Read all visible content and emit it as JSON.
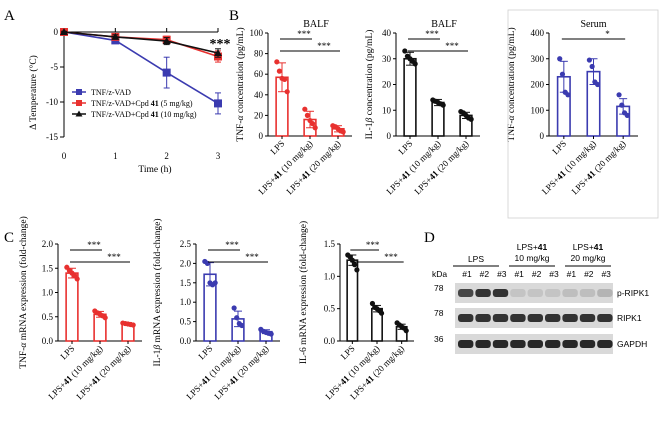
{
  "colors": {
    "red": "#e8312f",
    "navy": "#3b3bb0",
    "black": "#111111",
    "blueDark": "#2e2e9e",
    "redBorder": "#e8312f"
  },
  "panels": {
    "A": "A",
    "B": "B",
    "C": "C",
    "D": "D"
  },
  "chart_data": [
    {
      "id": "A",
      "type": "line",
      "xlabel": "Time (h)",
      "ylabel": "Δ Temperature (°C)",
      "xlim": [
        0,
        3
      ],
      "ylim": [
        -15,
        0
      ],
      "xticks": [
        "0",
        "1",
        "2",
        "3"
      ],
      "yticks": [
        "0",
        "-5",
        "-10",
        "-15"
      ],
      "annotation": "***",
      "series": [
        {
          "name": "TNF/z-VAD",
          "color": "#3b3bb0",
          "marker": "square",
          "x": [
            0,
            1,
            2,
            3
          ],
          "values": [
            0,
            -1.2,
            -5.8,
            -10.2
          ],
          "err": [
            0.1,
            0.4,
            2.2,
            1.5
          ]
        },
        {
          "name": "TNF/z-VAD+Cpd 41 (5 mg/kg)",
          "name_parts": [
            "TNF/z-VAD+Cpd ",
            "41",
            " (5 mg/kg)"
          ],
          "color": "#e8312f",
          "marker": "square",
          "x": [
            0,
            1,
            2,
            3
          ],
          "values": [
            0,
            -0.7,
            -1.1,
            -3.5
          ],
          "err": [
            0.1,
            0.3,
            0.5,
            0.8
          ]
        },
        {
          "name": "TNF/z-VAD+Cpd 41 (10 mg/kg)",
          "name_parts": [
            "TNF/z-VAD+Cpd ",
            "41",
            " (10 mg/kg)"
          ],
          "color": "#111111",
          "marker": "triangle",
          "x": [
            0,
            1,
            2,
            3
          ],
          "values": [
            0,
            -0.7,
            -1.3,
            -3.0
          ],
          "err": [
            0.1,
            0.3,
            0.5,
            0.6
          ]
        }
      ]
    },
    {
      "id": "B1",
      "type": "bar",
      "title": "BALF",
      "ylabel": "TNF-α concentration (pg/mL)",
      "ylabel_parts": [
        "TNF-",
        "α",
        " concentration (pg/mL)"
      ],
      "ylim": [
        0,
        100
      ],
      "yticks": [
        "0",
        "20",
        "40",
        "60",
        "80",
        "100"
      ],
      "categories": [
        "LPS",
        "LPS+41 (10 mg/kg)",
        "LPS+41 (20 mg/kg)"
      ],
      "values": [
        57,
        16,
        7
      ],
      "err": [
        14,
        8,
        3
      ],
      "points": [
        [
          72,
          63,
          56,
          55,
          43
        ],
        [
          26,
          20,
          15,
          12,
          8
        ],
        [
          10,
          9,
          7,
          5,
          4
        ]
      ],
      "color": "#e8312f",
      "significance": [
        {
          "from": 0,
          "to": 1,
          "label": "***"
        },
        {
          "from": 0,
          "to": 2,
          "label": "***"
        }
      ]
    },
    {
      "id": "B2",
      "type": "bar",
      "title": "BALF",
      "ylabel": "IL-1β concentration (pg/mL)",
      "ylabel_parts": [
        "IL-1",
        "β",
        " concentration (pg/mL)"
      ],
      "ylim": [
        0,
        40
      ],
      "yticks": [
        "0",
        "10",
        "20",
        "30",
        "40"
      ],
      "categories": [
        "LPS",
        "LPS+41 (10 mg/kg)",
        "LPS+41 (20 mg/kg)"
      ],
      "values": [
        30,
        13,
        8
      ],
      "err": [
        2.5,
        1.2,
        1.2
      ],
      "points": [
        [
          33,
          31,
          30,
          29,
          28
        ],
        [
          14,
          13.5,
          13,
          12.5,
          12
        ],
        [
          9.5,
          9,
          8,
          7,
          6.5
        ]
      ],
      "color": "#111111",
      "significance": [
        {
          "from": 0,
          "to": 1,
          "label": "***"
        },
        {
          "from": 0,
          "to": 2,
          "label": "***"
        }
      ]
    },
    {
      "id": "B3",
      "type": "bar",
      "title": "Serum",
      "ylabel": "TNF-α concentration (pg/mL)",
      "ylabel_parts": [
        "TNF-",
        "α",
        " concentration (pg/mL)"
      ],
      "ylim": [
        0,
        400
      ],
      "yticks": [
        "0",
        "100",
        "200",
        "300",
        "400"
      ],
      "categories": [
        "LPS",
        "LPS+41 (10 mg/kg)",
        "LPS+41 (20 mg/kg)"
      ],
      "values": [
        230,
        250,
        115
      ],
      "err": [
        60,
        50,
        30
      ],
      "points": [
        [
          300,
          240,
          170,
          160
        ],
        [
          295,
          270,
          210,
          200
        ],
        [
          160,
          120,
          90,
          80
        ]
      ],
      "color": "#3b3bb0",
      "significance": [
        {
          "from": 0,
          "to": 2,
          "label": "*"
        }
      ]
    },
    {
      "id": "C1",
      "type": "bar",
      "ylabel": "TNF-α mRNA expression (fold-change)",
      "ylabel_parts": [
        "TNF-",
        "α",
        " mRNA expression (fold-change)"
      ],
      "ylim": [
        0,
        2.0
      ],
      "yticks": [
        "0.0",
        "0.5",
        "1.0",
        "1.5",
        "2.0"
      ],
      "categories": [
        "LPS",
        "LPS+41 (10 mg/kg)",
        "LPS+41 (20 mg/kg)"
      ],
      "values": [
        1.4,
        0.55,
        0.35
      ],
      "err": [
        0.1,
        0.06,
        0.03
      ],
      "points": [
        [
          1.52,
          1.45,
          1.4,
          1.35,
          1.28
        ],
        [
          0.62,
          0.58,
          0.55,
          0.52,
          0.48
        ],
        [
          0.37,
          0.36,
          0.35,
          0.34,
          0.33
        ]
      ],
      "color": "#e8312f",
      "significance": [
        {
          "from": 0,
          "to": 1,
          "label": "***"
        },
        {
          "from": 0,
          "to": 2,
          "label": "***"
        }
      ]
    },
    {
      "id": "C2",
      "type": "bar",
      "ylabel": "IL-1β mRNA expression (fold-change)",
      "ylabel_parts": [
        "IL-1",
        "β",
        " mRNA expression (fold-change)"
      ],
      "ylim": [
        0,
        2.5
      ],
      "yticks": [
        "0.0",
        "0.5",
        "1.0",
        "1.5",
        "2.0",
        "2.5"
      ],
      "categories": [
        "LPS",
        "LPS+41 (10 mg/kg)",
        "LPS+41 (20 mg/kg)"
      ],
      "values": [
        1.72,
        0.57,
        0.24
      ],
      "err": [
        0.3,
        0.2,
        0.05
      ],
      "points": [
        [
          2.05,
          2.0,
          1.5,
          1.45,
          1.5
        ],
        [
          0.85,
          0.6,
          0.45,
          0.4
        ],
        [
          0.3,
          0.25,
          0.22,
          0.2,
          0.18
        ]
      ],
      "color": "#3b3bb0",
      "significance": [
        {
          "from": 0,
          "to": 1,
          "label": "***"
        },
        {
          "from": 0,
          "to": 2,
          "label": "***"
        }
      ]
    },
    {
      "id": "C3",
      "type": "bar",
      "ylabel": "IL-6 mRNA expression (fold-change)",
      "ylim": [
        0,
        1.5
      ],
      "yticks": [
        "0.0",
        "0.5",
        "1.0",
        "1.5"
      ],
      "categories": [
        "LPS",
        "LPS+41 (10 mg/kg)",
        "LPS+41 (20 mg/kg)"
      ],
      "values": [
        1.25,
        0.5,
        0.22
      ],
      "err": [
        0.08,
        0.05,
        0.04
      ],
      "points": [
        [
          1.33,
          1.3,
          1.25,
          1.18,
          1.1
        ],
        [
          0.58,
          0.52,
          0.5,
          0.47,
          0.43
        ],
        [
          0.28,
          0.25,
          0.22,
          0.2,
          0.16
        ]
      ],
      "color": "#111111",
      "significance": [
        {
          "from": 0,
          "to": 1,
          "label": "***"
        },
        {
          "from": 0,
          "to": 2,
          "label": "***"
        }
      ]
    }
  ],
  "blot": {
    "groups": [
      {
        "label": "LPS"
      },
      {
        "label_prefix": "LPS+",
        "label_bold": "41",
        "sublabel": "10 mg/kg"
      },
      {
        "label_prefix": "LPS+",
        "label_bold": "41",
        "sublabel": "20 mg/kg"
      }
    ],
    "lanes": [
      "#1",
      "#2",
      "#3",
      "#1",
      "#2",
      "#3",
      "#1",
      "#2",
      "#3"
    ],
    "kda_label": "kDa",
    "rows": [
      {
        "marker": "78",
        "name": "p-RIPK1",
        "intensity": [
          0.75,
          0.85,
          0.85,
          0.12,
          0.12,
          0.12,
          0.15,
          0.15,
          0.2
        ]
      },
      {
        "marker": "78",
        "name": "RIPK1",
        "intensity": [
          0.85,
          0.85,
          0.85,
          0.85,
          0.85,
          0.85,
          0.85,
          0.85,
          0.85
        ]
      },
      {
        "marker": "36",
        "name": "GAPDH",
        "intensity": [
          0.9,
          0.9,
          0.9,
          0.9,
          0.9,
          0.9,
          0.9,
          0.9,
          0.9
        ]
      }
    ]
  }
}
